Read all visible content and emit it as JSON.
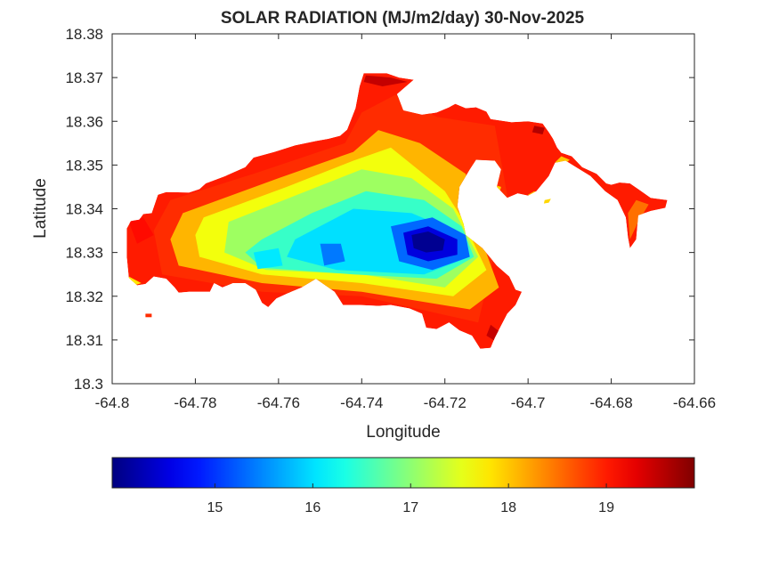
{
  "chart_data": {
    "type": "heatmap",
    "title": "SOLAR RADIATION (MJ/m2/day) 30-Nov-2025",
    "xlabel": "Longitude",
    "ylabel": "Latitude",
    "xlim": [
      -64.8,
      -64.66
    ],
    "ylim": [
      18.3,
      18.38
    ],
    "x_ticks": [
      "-64.8",
      "-64.78",
      "-64.76",
      "-64.74",
      "-64.72",
      "-64.7",
      "-64.68",
      "-64.66"
    ],
    "y_ticks": [
      "18.3",
      "18.31",
      "18.32",
      "18.33",
      "18.34",
      "18.35",
      "18.36",
      "18.37",
      "18.38"
    ],
    "colorbar": {
      "colormap": "jet",
      "range": [
        13.95,
        19.9
      ],
      "ticks": [
        "15",
        "16",
        "17",
        "18",
        "19"
      ],
      "location": "bottom"
    },
    "grid": false,
    "landmass": [
      [
        -64.7965,
        18.3355
      ],
      [
        -64.7955,
        18.3372
      ],
      [
        -64.7935,
        18.3375
      ],
      [
        -64.7925,
        18.3388
      ],
      [
        -64.7905,
        18.339
      ],
      [
        -64.789,
        18.3432
      ],
      [
        -64.787,
        18.3438
      ],
      [
        -64.7815,
        18.3437
      ],
      [
        -64.779,
        18.3445
      ],
      [
        -64.7775,
        18.3458
      ],
      [
        -64.7728,
        18.3475
      ],
      [
        -64.768,
        18.3495
      ],
      [
        -64.766,
        18.3517
      ],
      [
        -64.761,
        18.353
      ],
      [
        -64.756,
        18.3545
      ],
      [
        -64.751,
        18.3555
      ],
      [
        -64.748,
        18.356
      ],
      [
        -64.7452,
        18.3567
      ],
      [
        -64.7435,
        18.3581
      ],
      [
        -64.7415,
        18.363
      ],
      [
        -64.7405,
        18.368
      ],
      [
        -64.7395,
        18.371
      ],
      [
        -64.734,
        18.371
      ],
      [
        -64.731,
        18.37
      ],
      [
        -64.7275,
        18.3695
      ],
      [
        -64.7315,
        18.3662
      ],
      [
        -64.73,
        18.3625
      ],
      [
        -64.7255,
        18.3615
      ],
      [
        -64.722,
        18.362
      ],
      [
        -64.719,
        18.3632
      ],
      [
        -64.7175,
        18.364
      ],
      [
        -64.715,
        18.363
      ],
      [
        -64.7125,
        18.3632
      ],
      [
        -64.71,
        18.3622
      ],
      [
        -64.709,
        18.3605
      ],
      [
        -64.704,
        18.3598
      ],
      [
        -64.7,
        18.36
      ],
      [
        -64.6965,
        18.3595
      ],
      [
        -64.695,
        18.3575
      ],
      [
        -64.694,
        18.356
      ],
      [
        -64.693,
        18.354
      ],
      [
        -64.692,
        18.3528
      ],
      [
        -64.6895,
        18.352
      ],
      [
        -64.687,
        18.3495
      ],
      [
        -64.6835,
        18.348
      ],
      [
        -64.6812,
        18.3458
      ],
      [
        -64.68,
        18.3455
      ],
      [
        -64.678,
        18.346
      ],
      [
        -64.6755,
        18.3458
      ],
      [
        -64.6735,
        18.3445
      ],
      [
        -64.6705,
        18.3425
      ],
      [
        -64.6665,
        18.342
      ],
      [
        -64.667,
        18.3402
      ],
      [
        -64.6705,
        18.3395
      ],
      [
        -64.6735,
        18.3385
      ],
      [
        -64.674,
        18.333
      ],
      [
        -64.6755,
        18.331
      ],
      [
        -64.676,
        18.3335
      ],
      [
        -64.6765,
        18.338
      ],
      [
        -64.6785,
        18.342
      ],
      [
        -64.6815,
        18.344
      ],
      [
        -64.685,
        18.3475
      ],
      [
        -64.6885,
        18.3495
      ],
      [
        -64.691,
        18.351
      ],
      [
        -64.6935,
        18.3505
      ],
      [
        -64.695,
        18.3475
      ],
      [
        -64.698,
        18.344
      ],
      [
        -64.7,
        18.343
      ],
      [
        -64.7025,
        18.3435
      ],
      [
        -64.705,
        18.3425
      ],
      [
        -64.7075,
        18.345
      ],
      [
        -64.7065,
        18.349
      ],
      [
        -64.708,
        18.351
      ],
      [
        -64.7125,
        18.3512
      ],
      [
        -64.714,
        18.349
      ],
      [
        -64.7165,
        18.345
      ],
      [
        -64.717,
        18.3405
      ],
      [
        -64.7155,
        18.3365
      ],
      [
        -64.715,
        18.334
      ],
      [
        -64.711,
        18.331
      ],
      [
        -64.7075,
        18.327
      ],
      [
        -64.7045,
        18.3245
      ],
      [
        -64.703,
        18.3215
      ],
      [
        -64.7015,
        18.321
      ],
      [
        -64.703,
        18.318
      ],
      [
        -64.705,
        18.316
      ],
      [
        -64.708,
        18.3105
      ],
      [
        -64.709,
        18.3082
      ],
      [
        -64.7115,
        18.308
      ],
      [
        -64.7135,
        18.311
      ],
      [
        -64.7165,
        18.3122
      ],
      [
        -64.719,
        18.314
      ],
      [
        -64.722,
        18.3125
      ],
      [
        -64.7245,
        18.3128
      ],
      [
        -64.7255,
        18.316
      ],
      [
        -64.7285,
        18.3172
      ],
      [
        -64.733,
        18.318
      ],
      [
        -64.736,
        18.3178
      ],
      [
        -64.7405,
        18.318
      ],
      [
        -64.7445,
        18.318
      ],
      [
        -64.7465,
        18.321
      ],
      [
        -64.751,
        18.324
      ],
      [
        -64.7545,
        18.322
      ],
      [
        -64.757,
        18.321
      ],
      [
        -64.7605,
        18.3195
      ],
      [
        -64.7625,
        18.3175
      ],
      [
        -64.764,
        18.3185
      ],
      [
        -64.7655,
        18.3215
      ],
      [
        -64.768,
        18.323
      ],
      [
        -64.771,
        18.323
      ],
      [
        -64.7735,
        18.322
      ],
      [
        -64.7755,
        18.323
      ],
      [
        -64.7765,
        18.321
      ],
      [
        -64.779,
        18.321
      ],
      [
        -64.7815,
        18.321
      ],
      [
        -64.784,
        18.3208
      ],
      [
        -64.785,
        18.322
      ],
      [
        -64.787,
        18.324
      ],
      [
        -64.79,
        18.3245
      ],
      [
        -64.792,
        18.3228
      ],
      [
        -64.794,
        18.3225
      ],
      [
        -64.796,
        18.3242
      ],
      [
        -64.7965,
        18.329
      ],
      [
        -64.7965,
        18.3355
      ]
    ],
    "contour_bands": [
      {
        "value": 18.9,
        "ring": [
          [
            -64.786,
            18.342
          ],
          [
            -64.766,
            18.348
          ],
          [
            -64.744,
            18.355
          ],
          [
            -64.74,
            18.362
          ],
          [
            -64.732,
            18.366
          ],
          [
            -64.722,
            18.361
          ],
          [
            -64.708,
            18.359
          ],
          [
            -64.705,
            18.343
          ],
          [
            -64.709,
            18.326
          ],
          [
            -64.712,
            18.314
          ],
          [
            -64.74,
            18.32
          ],
          [
            -64.764,
            18.321
          ],
          [
            -64.788,
            18.325
          ],
          [
            -64.79,
            18.335
          ]
        ]
      },
      {
        "value": 18.1,
        "ring": [
          [
            -64.783,
            18.339
          ],
          [
            -64.76,
            18.347
          ],
          [
            -64.742,
            18.353
          ],
          [
            -64.736,
            18.358
          ],
          [
            -64.726,
            18.355
          ],
          [
            -64.715,
            18.348
          ],
          [
            -64.712,
            18.335
          ],
          [
            -64.707,
            18.322
          ],
          [
            -64.714,
            18.317
          ],
          [
            -64.74,
            18.321
          ],
          [
            -64.764,
            18.323
          ],
          [
            -64.784,
            18.327
          ],
          [
            -64.786,
            18.333
          ]
        ]
      },
      {
        "value": 17.6,
        "ring": [
          [
            -64.778,
            18.338
          ],
          [
            -64.758,
            18.345
          ],
          [
            -64.742,
            18.351
          ],
          [
            -64.733,
            18.354
          ],
          [
            -64.72,
            18.344
          ],
          [
            -64.716,
            18.338
          ],
          [
            -64.71,
            18.326
          ],
          [
            -64.718,
            18.32
          ],
          [
            -64.74,
            18.323
          ],
          [
            -64.764,
            18.325
          ],
          [
            -64.779,
            18.329
          ],
          [
            -64.78,
            18.334
          ]
        ]
      },
      {
        "value": 17.1,
        "ring": [
          [
            -64.772,
            18.337
          ],
          [
            -64.756,
            18.343
          ],
          [
            -64.74,
            18.349
          ],
          [
            -64.728,
            18.347
          ],
          [
            -64.718,
            18.34
          ],
          [
            -64.712,
            18.329
          ],
          [
            -64.72,
            18.322
          ],
          [
            -64.74,
            18.325
          ],
          [
            -64.763,
            18.326
          ],
          [
            -64.773,
            18.33
          ]
        ]
      },
      {
        "value": 16.5,
        "ring": [
          [
            -64.764,
            18.333
          ],
          [
            -64.752,
            18.339
          ],
          [
            -64.739,
            18.344
          ],
          [
            -64.725,
            18.342
          ],
          [
            -64.716,
            18.336
          ],
          [
            -64.713,
            18.329
          ],
          [
            -64.722,
            18.324
          ],
          [
            -64.742,
            18.325
          ],
          [
            -64.764,
            18.3265
          ],
          [
            -64.768,
            18.33
          ]
        ]
      },
      {
        "value": 16.0,
        "ring": [
          [
            -64.756,
            18.333
          ],
          [
            -64.742,
            18.34
          ],
          [
            -64.728,
            18.339
          ],
          [
            -64.718,
            18.335
          ],
          [
            -64.714,
            18.329
          ],
          [
            -64.725,
            18.325
          ],
          [
            -64.746,
            18.326
          ],
          [
            -64.758,
            18.329
          ]
        ]
      },
      {
        "value": 16.05,
        "ring": [
          [
            -64.766,
            18.33
          ],
          [
            -64.76,
            18.331
          ],
          [
            -64.759,
            18.327
          ],
          [
            -64.765,
            18.3262
          ]
        ]
      },
      {
        "value": 15.3,
        "ring": [
          [
            -64.733,
            18.336
          ],
          [
            -64.723,
            18.338
          ],
          [
            -64.715,
            18.334
          ],
          [
            -64.714,
            18.329
          ],
          [
            -64.723,
            18.326
          ],
          [
            -64.731,
            18.328
          ]
        ]
      },
      {
        "value": 15.4,
        "ring": [
          [
            -64.75,
            18.332
          ],
          [
            -64.745,
            18.332
          ],
          [
            -64.744,
            18.328
          ],
          [
            -64.749,
            18.327
          ]
        ]
      },
      {
        "value": 14.5,
        "ring": [
          [
            -64.73,
            18.3345
          ],
          [
            -64.724,
            18.336
          ],
          [
            -64.717,
            18.333
          ],
          [
            -64.717,
            18.3295
          ],
          [
            -64.724,
            18.328
          ],
          [
            -64.729,
            18.3295
          ]
        ]
      },
      {
        "value": 14.05,
        "ring": [
          [
            -64.728,
            18.334
          ],
          [
            -64.724,
            18.3348
          ],
          [
            -64.72,
            18.333
          ],
          [
            -64.7205,
            18.3305
          ],
          [
            -64.7245,
            18.33
          ],
          [
            -64.7275,
            18.331
          ]
        ]
      },
      {
        "value": 19.5,
        "ring": [
          [
            -64.739,
            18.3705
          ],
          [
            -64.733,
            18.37
          ],
          [
            -64.729,
            18.369
          ],
          [
            -64.735,
            18.368
          ],
          [
            -64.7395,
            18.369
          ]
        ]
      },
      {
        "value": 19.6,
        "ring": [
          [
            -64.6985,
            18.359
          ],
          [
            -64.696,
            18.3585
          ],
          [
            -64.6965,
            18.357
          ],
          [
            -64.699,
            18.3575
          ]
        ]
      },
      {
        "value": 19.5,
        "ring": [
          [
            -64.709,
            18.3135
          ],
          [
            -64.707,
            18.312
          ],
          [
            -64.708,
            18.3098
          ],
          [
            -64.71,
            18.311
          ]
        ]
      },
      {
        "value": 18.5,
        "ring": [
          [
            -64.674,
            18.342
          ],
          [
            -64.671,
            18.341
          ],
          [
            -64.6735,
            18.337
          ],
          [
            -64.6755,
            18.333
          ],
          [
            -64.676,
            18.339
          ]
        ]
      },
      {
        "value": 18.0,
        "ring": [
          [
            -64.692,
            18.352
          ],
          [
            -64.69,
            18.3512
          ],
          [
            -64.6915,
            18.35
          ],
          [
            -64.6935,
            18.3506
          ]
        ]
      },
      {
        "value": 17.9,
        "ring": [
          [
            -64.7085,
            18.3455
          ],
          [
            -64.7065,
            18.345
          ],
          [
            -64.707,
            18.343
          ],
          [
            -64.709,
            18.344
          ]
        ]
      },
      {
        "value": 18.0,
        "ring": [
          [
            -64.6985,
            18.344
          ],
          [
            -64.6965,
            18.343
          ],
          [
            -64.699,
            18.3422
          ],
          [
            -64.7,
            18.3432
          ]
        ]
      },
      {
        "value": 17.8,
        "ring": [
          [
            -64.796,
            18.3245
          ],
          [
            -64.793,
            18.323
          ],
          [
            -64.7955,
            18.3222
          ]
        ]
      },
      {
        "value": 19.1,
        "ring": [
          [
            -64.796,
            18.337
          ],
          [
            -64.7925,
            18.338
          ],
          [
            -64.79,
            18.334
          ],
          [
            -64.794,
            18.332
          ]
        ]
      }
    ],
    "islets": [
      {
        "value": 18.9,
        "ring": [
          [
            -64.792,
            18.316
          ],
          [
            -64.7905,
            18.316
          ],
          [
            -64.7905,
            18.3152
          ],
          [
            -64.792,
            18.3152
          ]
        ]
      },
      {
        "value": 17.9,
        "ring": [
          [
            -64.696,
            18.342
          ],
          [
            -64.6945,
            18.3423
          ],
          [
            -64.695,
            18.3414
          ],
          [
            -64.6962,
            18.3412
          ]
        ]
      }
    ]
  }
}
